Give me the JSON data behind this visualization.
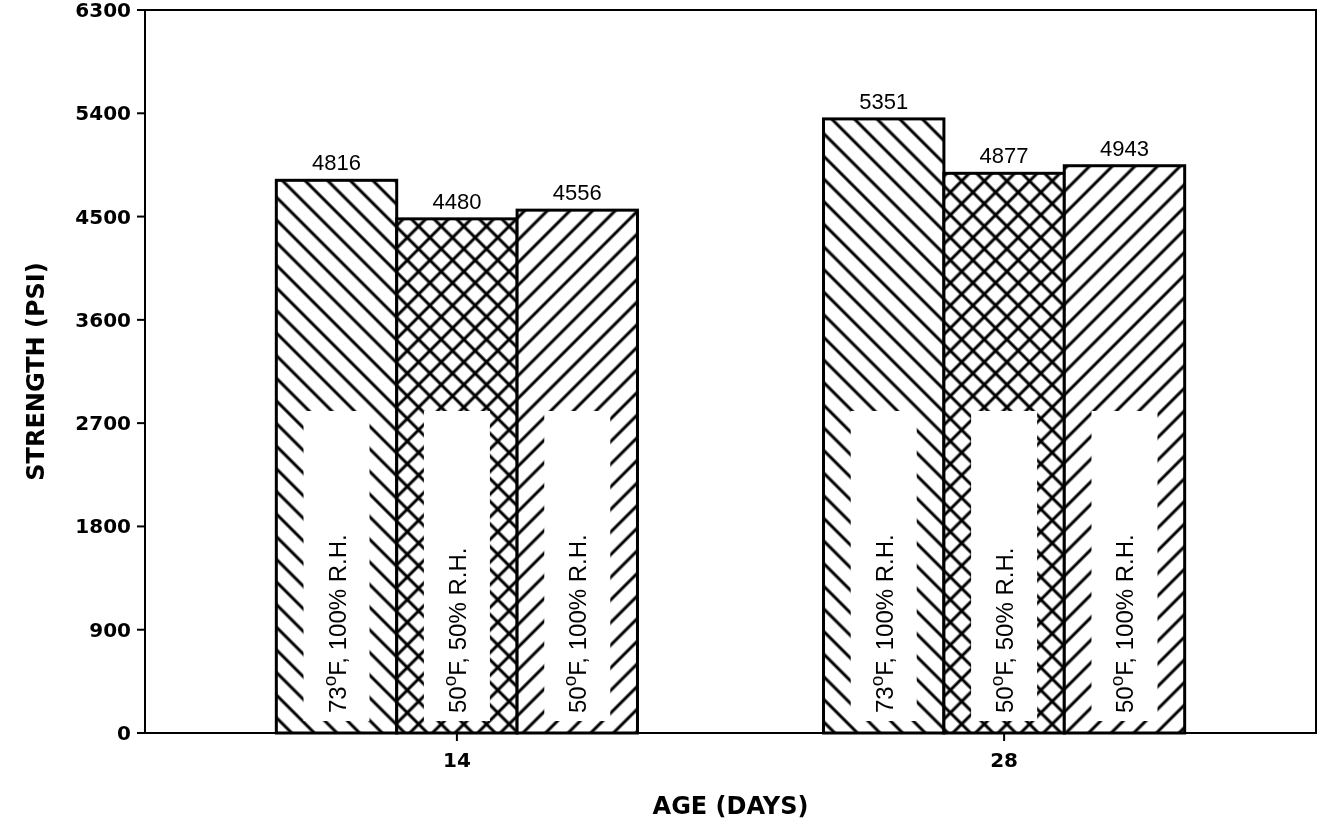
{
  "chart_data": {
    "type": "bar",
    "xlabel": "AGE (DAYS)",
    "ylabel": "STRENGTH (PSI)",
    "categories": [
      "14",
      "28"
    ],
    "series": [
      {
        "name": "73$^{o}$F, 100% R.H.",
        "color": "#000000",
        "values": [
          4816,
          5351
        ]
      },
      {
        "name": "50$^{o}$F, 50% R.H.",
        "color": "#000000",
        "values": [
          4480,
          4877
        ]
      },
      {
        "name": "50$^{o}$F, 100% R.H.",
        "color": "#000000",
        "values": [
          4556,
          4943
        ]
      }
    ],
    "ylim": [
      0,
      6300
    ],
    "yticks": [
      0,
      900,
      1800,
      2700,
      3600,
      4500,
      5400,
      6300
    ],
    "data_labels": true
  }
}
